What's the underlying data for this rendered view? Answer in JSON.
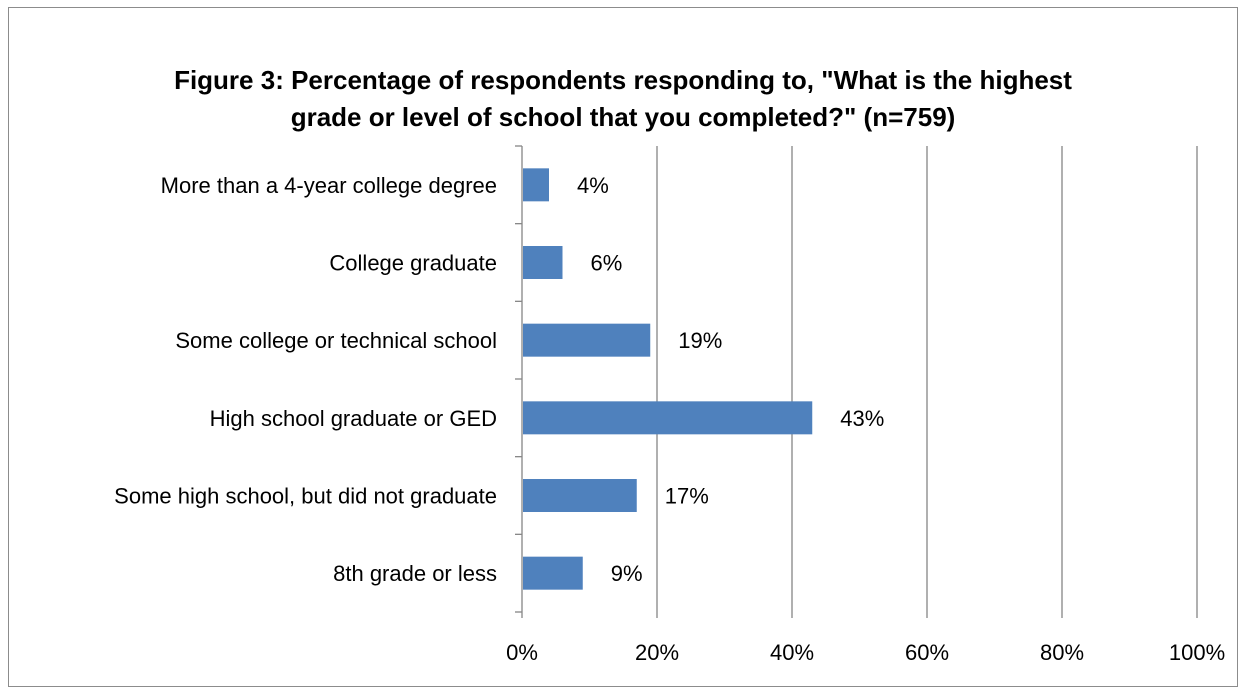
{
  "chart_data": {
    "type": "bar",
    "orientation": "horizontal",
    "title": "Figure 3: Percentage of respondents responding to, \"What is the highest\ngrade or level of school that you completed?\" (n=759)",
    "categories": [
      "More than a 4-year college degree",
      "College graduate",
      "Some college or technical school",
      "High school graduate or GED",
      "Some high school, but did not graduate",
      "8th grade or less"
    ],
    "values": [
      4,
      6,
      19,
      43,
      17,
      9
    ],
    "data_labels": [
      "4%",
      "6%",
      "19%",
      "43%",
      "17%",
      "9%"
    ],
    "xlim": [
      0,
      100
    ],
    "x_ticks": [
      0,
      20,
      40,
      60,
      80,
      100
    ],
    "x_tick_labels": [
      "0%",
      "20%",
      "40%",
      "60%",
      "80%",
      "100%"
    ],
    "xlabel": "",
    "ylabel": "",
    "grid": "vertical",
    "legend": "none",
    "bar_color": "#4f81bd",
    "grid_color": "#868686"
  }
}
